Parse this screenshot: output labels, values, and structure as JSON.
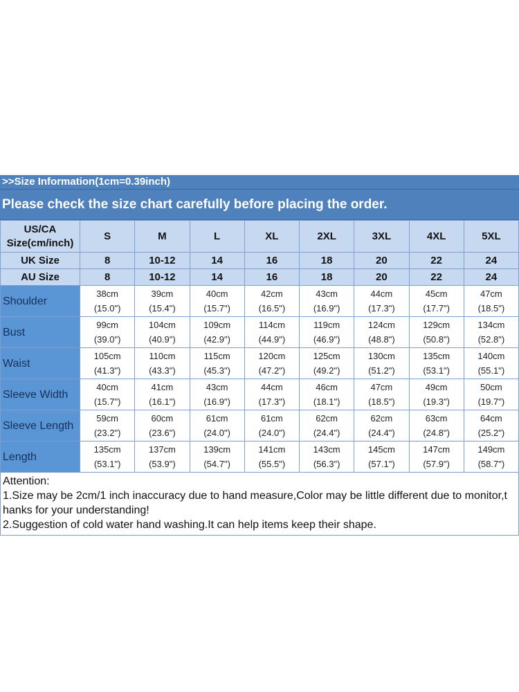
{
  "banner": {
    "line1": ">>Size Information(1cm=0.39inch)",
    "line2": "Please check the size chart carefully before placing the order."
  },
  "header": {
    "label": "US/CA Size(cm/inch)",
    "sizes": [
      "S",
      "M",
      "L",
      "XL",
      "2XL",
      "3XL",
      "4XL",
      "5XL"
    ]
  },
  "uk": {
    "label": "UK Size",
    "values": [
      "8",
      "10-12",
      "14",
      "16",
      "18",
      "20",
      "22",
      "24"
    ]
  },
  "au": {
    "label": "AU Size",
    "values": [
      "8",
      "10-12",
      "14",
      "16",
      "18",
      "20",
      "22",
      "24"
    ]
  },
  "rows": [
    {
      "label": "Shoulder",
      "cm": [
        "38cm",
        "39cm",
        "40cm",
        "42cm",
        "43cm",
        "44cm",
        "45cm",
        "47cm"
      ],
      "inch": [
        "(15.0\")",
        "(15.4\")",
        "(15.7\")",
        "(16.5\")",
        "(16.9\")",
        "(17.3\")",
        "(17.7\")",
        "(18.5\")"
      ]
    },
    {
      "label": "Bust",
      "cm": [
        "99cm",
        "104cm",
        "109cm",
        "114cm",
        "119cm",
        "124cm",
        "129cm",
        "134cm"
      ],
      "inch": [
        "(39.0\")",
        "(40.9\")",
        "(42.9\")",
        "(44.9\")",
        "(46.9\")",
        "(48.8\")",
        "(50.8\")",
        "(52.8\")"
      ]
    },
    {
      "label": "Waist",
      "cm": [
        "105cm",
        "110cm",
        "115cm",
        "120cm",
        "125cm",
        "130cm",
        "135cm",
        "140cm"
      ],
      "inch": [
        "(41.3\")",
        "(43.3\")",
        "(45.3\")",
        "(47.2\")",
        "(49.2\")",
        "(51.2\")",
        "(53.1\")",
        "(55.1\")"
      ]
    },
    {
      "label": "Sleeve Width",
      "cm": [
        "40cm",
        "41cm",
        "43cm",
        "44cm",
        "46cm",
        "47cm",
        "49cm",
        "50cm"
      ],
      "inch": [
        "(15.7\")",
        "(16.1\")",
        "(16.9\")",
        "(17.3\")",
        "(18.1\")",
        "(18.5\")",
        "(19.3\")",
        "(19.7\")"
      ]
    },
    {
      "label": "Sleeve Length",
      "cm": [
        "59cm",
        "60cm",
        "61cm",
        "61cm",
        "62cm",
        "62cm",
        "63cm",
        "64cm"
      ],
      "inch": [
        "(23.2\")",
        "(23.6\")",
        "(24.0\")",
        "(24.0\")",
        "(24.4\")",
        "(24.4\")",
        "(24.8\")",
        "(25.2\")"
      ]
    },
    {
      "label": "Length",
      "cm": [
        "135cm",
        "137cm",
        "139cm",
        "141cm",
        "143cm",
        "145cm",
        "147cm",
        "149cm"
      ],
      "inch": [
        "(53.1\")",
        "(53.9\")",
        "(54.7\")",
        "(55.5\")",
        "(56.3\")",
        "(57.1\")",
        "(57.9\")",
        "(58.7\")"
      ]
    }
  ],
  "attention": {
    "title": "Attention:",
    "note1": "1.Size may be 2cm/1 inch inaccuracy due to hand measure,Color may be little different due to monitor,t hanks for your understanding!",
    "note2": "2.Suggestion of cold water hand washing.It can help items keep their shape."
  }
}
